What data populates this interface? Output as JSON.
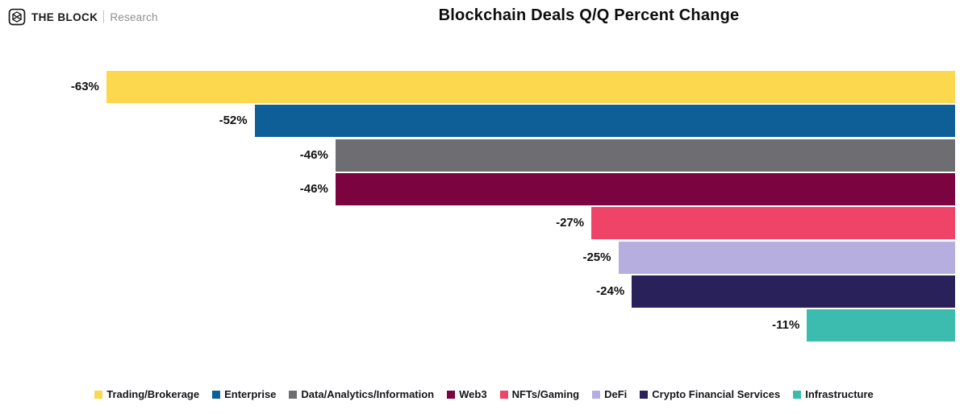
{
  "header": {
    "brand": {
      "name": "THE BLOCK",
      "sub": "Research"
    }
  },
  "chart_data": {
    "type": "bar",
    "orientation": "horizontal",
    "title": "Blockchain Deals Q/Q Percent Change",
    "xlabel": "",
    "ylabel": "",
    "xlim": [
      -63,
      0
    ],
    "grid": false,
    "axis_anchor": "right",
    "legend_position": "bottom",
    "categories": [
      "Trading/Brokerage",
      "Enterprise",
      "Data/Analytics/Information",
      "Web3",
      "NFTs/Gaming",
      "DeFi",
      "Crypto Financial Services",
      "Infrastructure"
    ],
    "values": [
      -63,
      -52,
      -46,
      -46,
      -27,
      -25,
      -24,
      -11
    ],
    "labels": [
      "-63%",
      "-52%",
      "-46%",
      "-46%",
      "-27%",
      "-25%",
      "-24%",
      "-11%"
    ],
    "colors": [
      "#FBD84D",
      "#0E5F98",
      "#6E6E72",
      "#7A0340",
      "#EF4368",
      "#B5AEDF",
      "#28215A",
      "#3CBCAF"
    ]
  }
}
